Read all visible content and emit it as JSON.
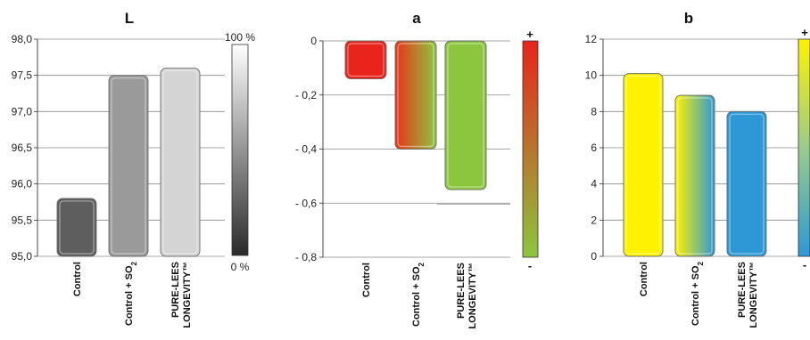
{
  "chart_data": [
    {
      "type": "bar",
      "title": "L",
      "categories": [
        "Control",
        "Control + SO2",
        "PURE-LEES LONGEVITY™"
      ],
      "values": [
        95.8,
        97.5,
        97.6
      ],
      "ylim": [
        95.0,
        98.0
      ],
      "yticks": [
        "95,0",
        "95,5",
        "96,0",
        "96,5",
        "97,0",
        "97,5",
        "98,0"
      ],
      "grid": true,
      "colors": [
        "#5e5e5e",
        "#9a9a9a",
        "#d4d4d4"
      ],
      "scale": {
        "type": "gradient",
        "top_label": "100 %",
        "bottom_label": "0 %",
        "top_color": "#ffffff",
        "bottom_color": "#2a2a2a"
      }
    },
    {
      "type": "bar",
      "title": "a",
      "categories": [
        "Control",
        "Control + SO2",
        "PURE-LEES LONGEVITY™"
      ],
      "values": [
        -0.14,
        -0.4,
        -0.55
      ],
      "ylim": [
        -0.8,
        0
      ],
      "yticks": [
        "0",
        "- 0,2",
        "- 0,4",
        "- 0,6",
        "- 0,8"
      ],
      "grid": true,
      "colors": [
        "#e8241c",
        "#c0622a",
        "#8cc63f"
      ],
      "scale": {
        "type": "gradient",
        "top_label": "+",
        "bottom_label": "-",
        "top_color": "#e8241c",
        "bottom_color": "#8cc63f"
      }
    },
    {
      "type": "bar",
      "title": "b",
      "categories": [
        "Control",
        "Control + SO2",
        "PURE-LEES LONGEVITY™"
      ],
      "values": [
        10.1,
        8.9,
        8.0
      ],
      "ylim": [
        0,
        12
      ],
      "yticks": [
        "0",
        "2",
        "4",
        "6",
        "8",
        "10",
        "12"
      ],
      "grid": true,
      "colors": [
        "#fff200",
        "#8fc3a6",
        "#2e98d6"
      ],
      "scale": {
        "type": "gradient",
        "top_label": "+",
        "bottom_label": "-",
        "top_color": "#fff200",
        "bottom_color": "#2e98d6"
      }
    }
  ]
}
